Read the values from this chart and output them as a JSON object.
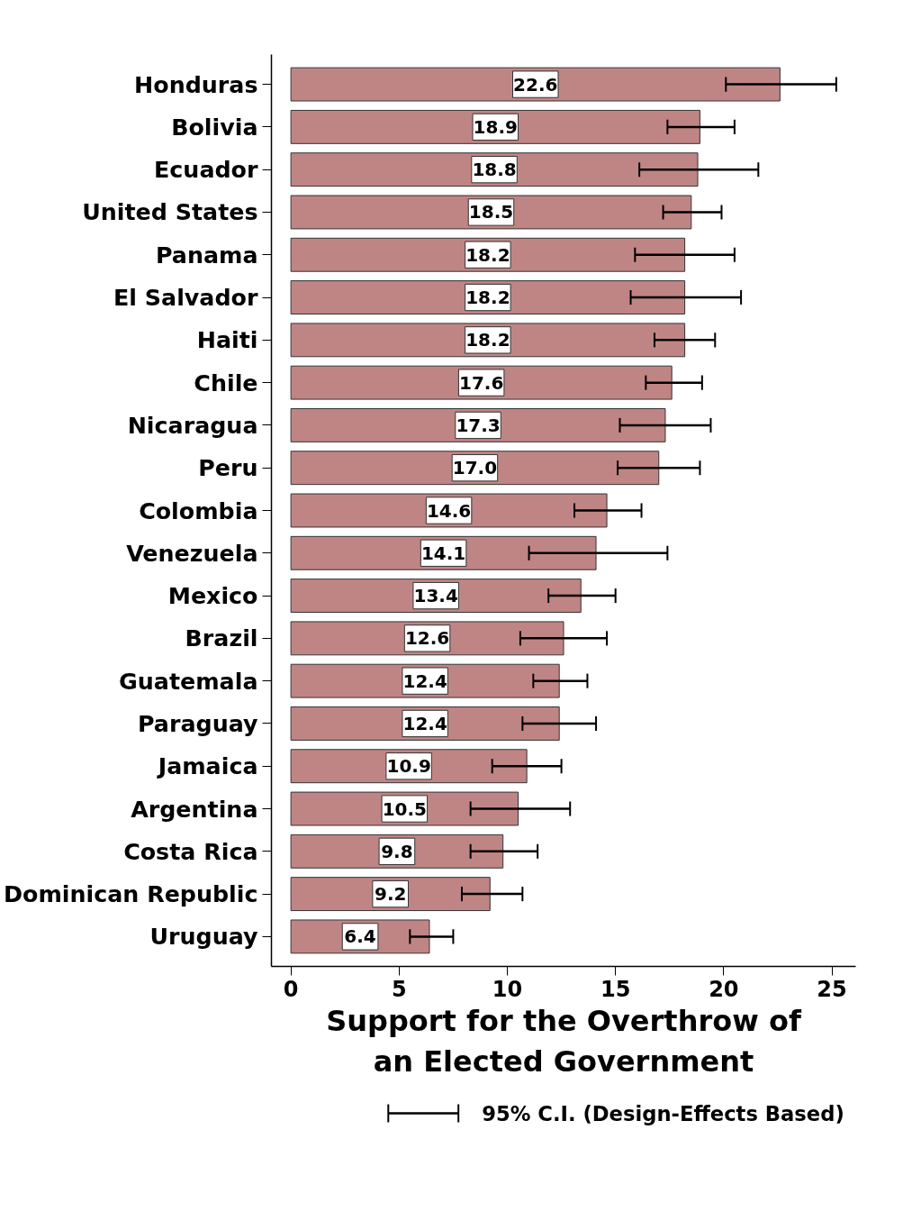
{
  "chart_data": {
    "type": "bar",
    "orientation": "horizontal",
    "xlabel": "Support for the Overthrow of\nan Elected Government",
    "categories": [
      "Honduras",
      "Bolivia",
      "Ecuador",
      "United States",
      "Panama",
      "El Salvador",
      "Haiti",
      "Chile",
      "Nicaragua",
      "Peru",
      "Colombia",
      "Venezuela",
      "Mexico",
      "Brazil",
      "Guatemala",
      "Paraguay",
      "Jamaica",
      "Argentina",
      "Costa Rica",
      "Dominican Republic",
      "Uruguay"
    ],
    "values": [
      22.6,
      18.9,
      18.8,
      18.5,
      18.2,
      18.2,
      18.2,
      17.6,
      17.3,
      17.0,
      14.6,
      14.1,
      13.4,
      12.6,
      12.4,
      12.4,
      10.9,
      10.5,
      9.8,
      9.2,
      6.4
    ],
    "value_labels": [
      "22.6",
      "18.9",
      "18.8",
      "18.5",
      "18.2",
      "18.2",
      "18.2",
      "17.6",
      "17.3",
      "17.0",
      "14.6",
      "14.1",
      "13.4",
      "12.6",
      "12.4",
      "12.4",
      "10.9",
      "10.5",
      "9.8",
      "9.2",
      "6.4"
    ],
    "errors": [
      [
        20.1,
        25.2
      ],
      [
        17.4,
        20.5
      ],
      [
        16.1,
        21.6
      ],
      [
        17.2,
        19.9
      ],
      [
        15.9,
        20.5
      ],
      [
        15.7,
        20.8
      ],
      [
        16.8,
        19.6
      ],
      [
        16.4,
        19.0
      ],
      [
        15.2,
        19.4
      ],
      [
        15.1,
        18.9
      ],
      [
        13.1,
        16.2
      ],
      [
        11.0,
        17.4
      ],
      [
        11.9,
        15.0
      ],
      [
        10.6,
        14.6
      ],
      [
        11.2,
        13.7
      ],
      [
        10.7,
        14.1
      ],
      [
        9.3,
        12.5
      ],
      [
        8.3,
        12.9
      ],
      [
        8.3,
        11.4
      ],
      [
        7.9,
        10.7
      ],
      [
        5.5,
        7.5
      ]
    ],
    "color": "#bf8585",
    "xlim": [
      -0.9,
      26.1
    ],
    "xticks": [
      0,
      5,
      10,
      15,
      20,
      25
    ],
    "grid": false,
    "annotations": [
      "95% C.I. (Design-Effects Based)"
    ]
  }
}
